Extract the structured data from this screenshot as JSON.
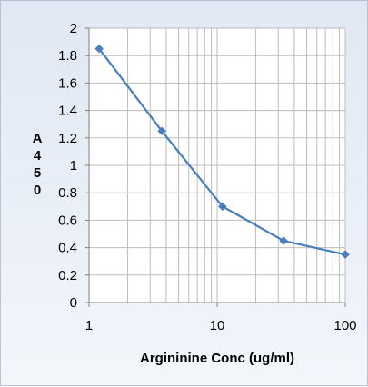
{
  "chart_data": {
    "type": "line",
    "title": "",
    "xlabel": "Argininine Conc (ug/ml)",
    "ylabel": "A450",
    "ylabel_chars": [
      "A",
      "4",
      "5",
      "0"
    ],
    "x_scale": "log",
    "xlim": [
      1,
      100
    ],
    "ylim": [
      0,
      2
    ],
    "x_ticks": [
      1,
      10,
      100
    ],
    "y_ticks": [
      0,
      0.2,
      0.4,
      0.6,
      0.8,
      1,
      1.2,
      1.4,
      1.6,
      1.8,
      2
    ],
    "x_tick_labels": [
      "1",
      "10",
      "100"
    ],
    "y_tick_labels": [
      "0",
      "0.2",
      "0.4",
      "0.6",
      "0.8",
      "1",
      "1.2",
      "1.4",
      "1.6",
      "1.8",
      "2"
    ],
    "grid": true,
    "legend": "none",
    "series": [
      {
        "color": "#4a7ebb",
        "marker": "diamond",
        "x": [
          1.2,
          3.7,
          11,
          33,
          100
        ],
        "y": [
          1.85,
          1.25,
          0.7,
          0.45,
          0.35
        ]
      }
    ]
  },
  "colors": {
    "plot_background": "#ffffff",
    "gridline": "#bdbdbd",
    "series_line": "#4a7ebb",
    "marker": "#4a7ebb"
  }
}
